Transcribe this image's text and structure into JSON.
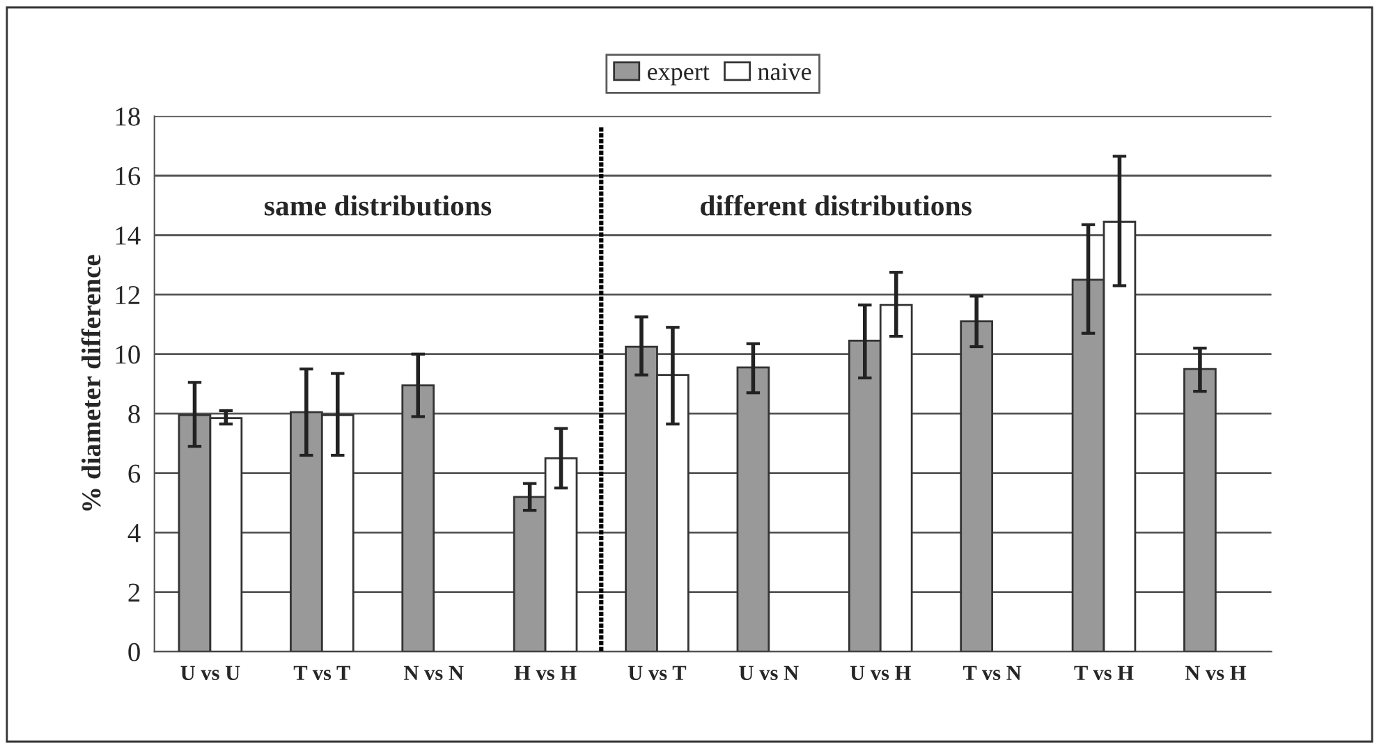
{
  "chart_data": {
    "type": "bar",
    "ylabel": "% diameter difference",
    "categories": [
      "U vs U",
      "T vs T",
      "N vs N",
      "H vs H",
      "U vs T",
      "U vs N",
      "U vs H",
      "T vs N",
      "T vs H",
      "N vs H"
    ],
    "series": [
      {
        "name": "expert",
        "color": "#999999",
        "values": [
          7.95,
          8.05,
          8.95,
          5.2,
          10.25,
          9.55,
          10.45,
          11.1,
          12.5,
          9.5
        ],
        "errors": [
          [
            6.9,
            9.05
          ],
          [
            6.6,
            9.5
          ],
          [
            7.9,
            10.0
          ],
          [
            4.75,
            5.65
          ],
          [
            9.3,
            11.25
          ],
          [
            8.7,
            10.35
          ],
          [
            9.2,
            11.65
          ],
          [
            10.25,
            11.95
          ],
          [
            10.7,
            14.35
          ],
          [
            8.75,
            10.2
          ]
        ]
      },
      {
        "name": "naive",
        "color": "#ffffff",
        "values": [
          7.85,
          7.95,
          null,
          6.5,
          9.3,
          null,
          11.65,
          null,
          14.45,
          null
        ],
        "errors": [
          [
            7.65,
            8.1
          ],
          [
            6.6,
            9.35
          ],
          null,
          [
            5.5,
            7.5
          ],
          [
            7.65,
            10.9
          ],
          null,
          [
            10.6,
            12.75
          ],
          null,
          [
            12.3,
            16.65
          ],
          null
        ]
      }
    ],
    "ylim": [
      0,
      18
    ],
    "yticks": [
      0,
      2,
      4,
      6,
      8,
      10,
      12,
      14,
      16,
      18
    ],
    "grid": "y",
    "legend": "top",
    "annotations": [
      "same distributions",
      "different distributions"
    ]
  }
}
